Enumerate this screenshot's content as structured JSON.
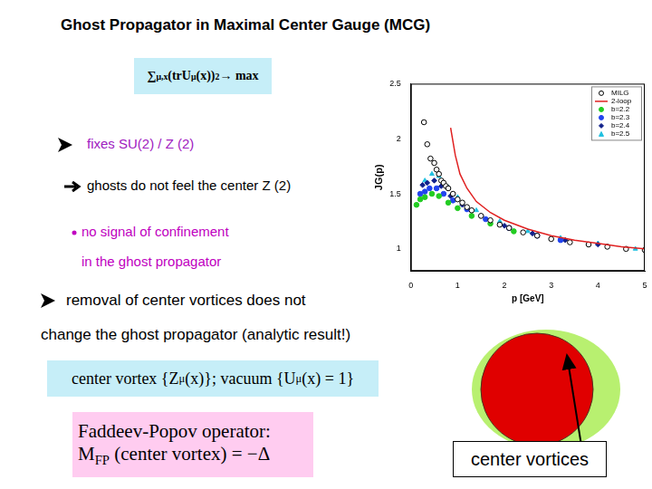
{
  "slide": {
    "title": "Ghost Propagator in Maximal Center Gauge (MCG)",
    "formula": [
      {
        "t": "∑"
      },
      {
        "sub": "μ,x"
      },
      {
        "t": "(trU"
      },
      {
        "sub": "μ"
      },
      {
        "t": "(x))"
      },
      {
        "sup": "2"
      },
      {
        "t": " → max"
      }
    ],
    "fixes": "fixes SU(2) / Z (2)",
    "ghosts": "ghosts do not feel the center Z (2)",
    "signal": [
      "no signal of confinement",
      "in the ghost propagator"
    ],
    "removal": [
      "removal of center vortices does not",
      "change the ghost propagator (analytic result!)"
    ],
    "vortex_box": [
      {
        "t": "center vortex  {Z"
      },
      {
        "sub": "μ"
      },
      {
        "t": "(x)};  vacuum {U"
      },
      {
        "sub": "μ"
      },
      {
        "t": "(x) = 1}"
      }
    ],
    "fp_box": {
      "line1": [
        {
          "t": "Faddeev-Popov operator:"
        }
      ],
      "line2": [
        {
          "t": "M"
        },
        {
          "sub": "FP"
        },
        {
          "t": " (center vortex) = −Δ"
        }
      ]
    },
    "diagram_label": "center vortices"
  },
  "chart_data": {
    "type": "scatter",
    "x_label": "p [GeV]",
    "y_label": "JG(p)",
    "xlim": [
      0,
      5
    ],
    "xticks": [
      0,
      1,
      2,
      3,
      4,
      5
    ],
    "ylim": [
      0.8,
      2.5
    ],
    "yticks": [
      1,
      1.5,
      2,
      2.5
    ],
    "grid": false,
    "legend": "upper right",
    "series": [
      {
        "name": "MILG",
        "type": "scatter",
        "color": "#000000",
        "marker": "circle_open",
        "x": [
          0.28,
          0.35,
          0.42,
          0.5,
          0.55,
          0.6,
          0.65,
          0.7,
          0.75,
          0.8,
          0.9,
          1.0,
          1.1,
          1.2,
          1.3,
          1.5,
          1.7,
          1.9,
          2.1,
          2.4,
          2.7,
          3.0,
          3.4,
          3.8,
          4.2,
          4.6,
          5.0
        ],
        "values": [
          2.15,
          1.95,
          1.82,
          1.78,
          1.72,
          1.68,
          1.62,
          1.6,
          1.57,
          1.55,
          1.5,
          1.45,
          1.42,
          1.38,
          1.35,
          1.3,
          1.26,
          1.22,
          1.19,
          1.15,
          1.12,
          1.09,
          1.06,
          1.04,
          1.02,
          1.0,
          0.99
        ]
      },
      {
        "name": "2-loop",
        "type": "line",
        "color": "#e02020",
        "line_style": "solid",
        "x": [
          0.85,
          0.95,
          1.05,
          1.2,
          1.4,
          1.7,
          2.0,
          2.5,
          3.0,
          3.5,
          4.0,
          4.5,
          5.0
        ],
        "values": [
          2.1,
          1.85,
          1.68,
          1.55,
          1.43,
          1.33,
          1.26,
          1.18,
          1.12,
          1.08,
          1.05,
          1.02,
          1.0
        ]
      },
      {
        "name": "b=2.2",
        "type": "scatter",
        "color": "#22cc22",
        "marker": "circle",
        "x": [
          0.12,
          0.2,
          0.3,
          0.45,
          0.6,
          0.8,
          1.0,
          1.3,
          1.7,
          2.2
        ],
        "values": [
          1.4,
          1.45,
          1.47,
          1.5,
          1.48,
          1.42,
          1.37,
          1.3,
          1.23,
          1.16
        ]
      },
      {
        "name": "b=2.3",
        "type": "scatter",
        "color": "#2244ee",
        "marker": "circle",
        "x": [
          0.2,
          0.3,
          0.4,
          0.55,
          0.7,
          0.9,
          1.2,
          1.6,
          2.1,
          2.7,
          3.2
        ],
        "values": [
          1.5,
          1.52,
          1.55,
          1.55,
          1.5,
          1.44,
          1.36,
          1.27,
          1.19,
          1.12,
          1.08
        ]
      },
      {
        "name": "b=2.4",
        "type": "scatter",
        "color": "#10208a",
        "marker": "diamond",
        "x": [
          0.25,
          0.35,
          0.5,
          0.65,
          0.85,
          1.1,
          1.5,
          2.0,
          2.6,
          3.3,
          4.0
        ],
        "values": [
          1.58,
          1.6,
          1.62,
          1.57,
          1.48,
          1.4,
          1.3,
          1.21,
          1.14,
          1.08,
          1.04
        ]
      },
      {
        "name": "b=2.5",
        "type": "scatter",
        "color": "#20c0e0",
        "marker": "triangle",
        "x": [
          0.3,
          0.45,
          0.6,
          0.8,
          1.0,
          1.4,
          1.9,
          2.5,
          3.2,
          4.0,
          4.8
        ],
        "values": [
          1.62,
          1.68,
          1.66,
          1.56,
          1.47,
          1.35,
          1.25,
          1.16,
          1.1,
          1.05,
          1.0
        ]
      }
    ]
  }
}
